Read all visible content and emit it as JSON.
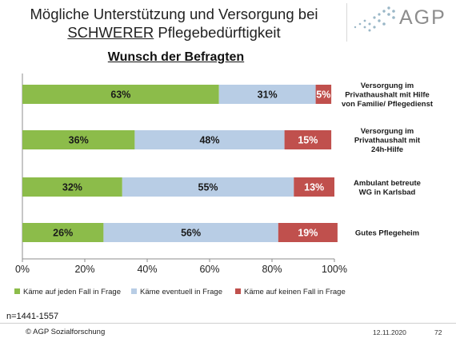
{
  "header": {
    "title_line1": "Mögliche Unterstützung und Versorgung bei",
    "title_line2_underlined": "SCHWERER",
    "title_line2_rest": " Pflegebedürftigkeit",
    "logo_text": "AGP"
  },
  "chart_data": {
    "type": "bar",
    "orientation": "horizontal",
    "stacked": true,
    "title": "Wunsch der Befragten",
    "categories": [
      [
        "Versorgung im",
        "Privathaushalt mit Hilfe",
        "von Familie/ Pflegedienst"
      ],
      [
        "Versorgung im",
        "Privathaushalt mit",
        "24h-Hilfe"
      ],
      [
        "Ambulant betreute",
        "WG in Karlsbad"
      ],
      [
        "Gutes Pflegeheim"
      ]
    ],
    "series": [
      {
        "name": "Käme auf jeden Fall in Frage",
        "values": [
          63,
          36,
          32,
          26
        ],
        "labels": [
          "63%",
          "36%",
          "32%",
          "26%"
        ],
        "color": "#8cbc4a"
      },
      {
        "name": "Käme eventuell in Frage",
        "values": [
          31,
          48,
          55,
          56
        ],
        "labels": [
          "31%",
          "48%",
          "55%",
          "56%"
        ],
        "color": "#b8cde5"
      },
      {
        "name": "Käme auf keinen Fall in Frage",
        "values": [
          5,
          15,
          13,
          19
        ],
        "labels": [
          "5%",
          "15%",
          "13%",
          "19%"
        ],
        "color": "#c0504d"
      }
    ],
    "x_ticks": [
      "0%",
      "20%",
      "40%",
      "60%",
      "80%",
      "100%"
    ],
    "xlim": [
      0,
      100
    ],
    "legend_position": "bottom",
    "grid": false
  },
  "note": "n=1441-1557",
  "footer": {
    "copyright": "© AGP Sozialforschung",
    "date": "12.11.2020",
    "page": "72"
  }
}
